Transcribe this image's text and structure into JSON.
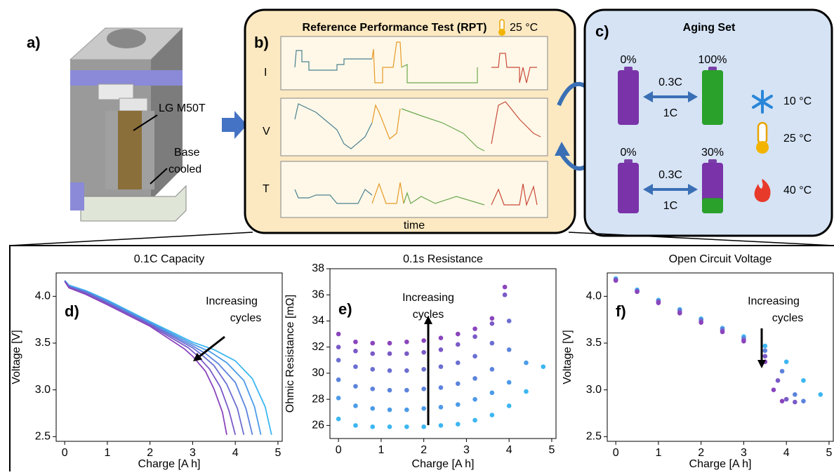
{
  "panel_a": {
    "label": "a)",
    "cell_label": "LG M50T",
    "base_label": [
      "Base",
      "cooled"
    ]
  },
  "panel_b": {
    "label": "b)",
    "title": "Reference Performance Test (RPT)",
    "temperature": "25 °C",
    "rows": [
      "I",
      "V",
      "T"
    ],
    "xlabel": "time"
  },
  "panel_c": {
    "label": "c)",
    "title": "Aging Set",
    "cycles": [
      {
        "from": {
          "value": 0,
          "label": "0%"
        },
        "to": {
          "value": 100,
          "label": "100%"
        },
        "charge": "0.3C",
        "discharge": "1C"
      },
      {
        "from": {
          "value": 0,
          "label": "0%"
        },
        "to": {
          "value": 30,
          "label": "30%"
        },
        "charge": "0.3C",
        "discharge": "1C"
      }
    ],
    "temperatures": [
      "10 °C",
      "25 °C",
      "40 °C"
    ]
  },
  "chart_data": [
    {
      "type": "line",
      "title": "0.1C Capacity",
      "panel_label": "d)",
      "annotation": [
        "Increasing",
        "cycles"
      ],
      "xlabel": "Charge [A h]",
      "ylabel": "Voltage [V]",
      "xlim": [
        -0.2,
        5.1
      ],
      "ylim": [
        2.45,
        4.25
      ],
      "xticks": [
        0,
        1,
        2,
        3,
        4,
        5
      ],
      "yticks": [
        2.5,
        {
          "value": 3,
          "label": "3.0"
        },
        3.5,
        {
          "value": 4,
          "label": "4.0"
        }
      ],
      "series": [
        {
          "color": "#3cb6f2",
          "x": [
            0,
            0.1,
            0.5,
            1,
            2,
            3,
            3.5,
            4,
            4.4,
            4.7,
            4.85
          ],
          "values": [
            4.17,
            4.12,
            4.06,
            3.96,
            3.73,
            3.51,
            3.43,
            3.31,
            3.12,
            2.82,
            2.52
          ]
        },
        {
          "color": "#4c9be8",
          "x": [
            0,
            0.1,
            0.5,
            1,
            2,
            3,
            3.4,
            3.8,
            4.2,
            4.45,
            4.6
          ],
          "values": [
            4.17,
            4.11,
            4.05,
            3.95,
            3.72,
            3.49,
            3.41,
            3.29,
            3.1,
            2.82,
            2.52
          ]
        },
        {
          "color": "#5c83dc",
          "x": [
            0,
            0.1,
            0.5,
            1,
            2,
            3,
            3.3,
            3.6,
            4,
            4.25,
            4.4
          ],
          "values": [
            4.16,
            4.11,
            4.05,
            3.94,
            3.71,
            3.47,
            3.39,
            3.28,
            3.08,
            2.8,
            2.52
          ]
        },
        {
          "color": "#6b6ed1",
          "x": [
            0,
            0.1,
            0.5,
            1,
            2,
            3,
            3.2,
            3.5,
            3.8,
            4.05,
            4.2
          ],
          "values": [
            4.16,
            4.1,
            4.04,
            3.93,
            3.7,
            3.45,
            3.38,
            3.26,
            3.06,
            2.8,
            2.52
          ]
        },
        {
          "color": "#7a5ac7",
          "x": [
            0,
            0.1,
            0.5,
            1,
            2,
            2.9,
            3.1,
            3.4,
            3.65,
            3.85,
            4
          ],
          "values": [
            4.16,
            4.1,
            4.03,
            3.92,
            3.69,
            3.45,
            3.37,
            3.22,
            3.03,
            2.78,
            2.52
          ]
        },
        {
          "color": "#8a45bd",
          "x": [
            0,
            0.1,
            0.5,
            1,
            2,
            2.8,
            3,
            3.3,
            3.5,
            3.7,
            3.8
          ],
          "values": [
            4.16,
            4.09,
            4.02,
            3.91,
            3.68,
            3.44,
            3.36,
            3.2,
            3.01,
            2.76,
            2.52
          ]
        }
      ]
    },
    {
      "type": "scatter",
      "title": "0.1s Resistance",
      "panel_label": "e)",
      "annotation": [
        "Increasing",
        "cycles"
      ],
      "xlabel": "Charge [A h]",
      "ylabel": "Ohmic Resistance [mΩ]",
      "xlim": [
        -0.2,
        5.1
      ],
      "ylim": [
        25,
        38
      ],
      "xticks": [
        0,
        1,
        2,
        3,
        4,
        5
      ],
      "yticks": [
        26,
        28,
        30,
        32,
        34,
        36,
        38
      ],
      "series": [
        {
          "color": "#3cb6f2",
          "x": [
            0,
            0.4,
            0.8,
            1.2,
            1.6,
            2,
            2.4,
            2.8,
            3.2,
            3.6,
            4,
            4.4,
            4.8
          ],
          "values": [
            26.5,
            26,
            25.9,
            25.9,
            25.9,
            25.9,
            26,
            26.1,
            26.4,
            26.8,
            27.5,
            28.6,
            30.5
          ]
        },
        {
          "color": "#4c9be8",
          "x": [
            0,
            0.4,
            0.8,
            1.2,
            1.6,
            2,
            2.4,
            2.8,
            3.2,
            3.6,
            4,
            4.4
          ],
          "values": [
            28.1,
            27.5,
            27.3,
            27.2,
            27.2,
            27.3,
            27.4,
            27.6,
            28,
            28.5,
            29.3,
            30.8
          ]
        },
        {
          "color": "#5c83dc",
          "x": [
            0,
            0.4,
            0.8,
            1.2,
            1.6,
            2,
            2.4,
            2.8,
            3.2,
            3.6,
            4
          ],
          "values": [
            29.5,
            29,
            28.8,
            28.7,
            28.7,
            28.8,
            28.9,
            29.2,
            29.6,
            30.3,
            31.8
          ]
        },
        {
          "color": "#6b6ed1",
          "x": [
            0,
            0.4,
            0.8,
            1.2,
            1.6,
            2,
            2.4,
            2.8,
            3.2,
            3.6,
            4
          ],
          "values": [
            31,
            30.5,
            30.3,
            30.2,
            30.2,
            30.3,
            30.5,
            30.8,
            31.3,
            32.3,
            34
          ]
        },
        {
          "color": "#7a5ac7",
          "x": [
            0,
            0.4,
            0.8,
            1.2,
            1.6,
            2,
            2.4,
            2.8,
            3.2,
            3.6,
            3.9
          ],
          "values": [
            32,
            31.7,
            31.5,
            31.5,
            31.5,
            31.6,
            31.8,
            32.2,
            32.8,
            33.8,
            36
          ]
        },
        {
          "color": "#8a45bd",
          "x": [
            0,
            0.4,
            0.8,
            1.2,
            1.6,
            2,
            2.4,
            2.8,
            3.2,
            3.6,
            3.9
          ],
          "values": [
            33,
            32.4,
            32.3,
            32.3,
            32.4,
            32.5,
            32.7,
            33,
            33.4,
            34.2,
            36.6
          ]
        }
      ]
    },
    {
      "type": "scatter",
      "title": "Open Circuit Voltage",
      "panel_label": "f)",
      "annotation": [
        "Increasing",
        "cycles"
      ],
      "xlabel": "Charge [A h]",
      "ylabel": "Voltage [V]",
      "xlim": [
        -0.2,
        5.1
      ],
      "ylim": [
        2.45,
        4.25
      ],
      "xticks": [
        0,
        1,
        2,
        3,
        4,
        5
      ],
      "yticks": [
        2.5,
        {
          "value": 3,
          "label": "3.0"
        },
        3.5,
        {
          "value": 4,
          "label": "4.0"
        }
      ],
      "series": [
        {
          "color": "#3cb6f2",
          "x": [
            0,
            0.5,
            1,
            1.5,
            2,
            2.5,
            3,
            3.5,
            4,
            4.4,
            4.8
          ],
          "values": [
            4.19,
            4.07,
            3.96,
            3.86,
            3.76,
            3.66,
            3.57,
            3.47,
            3.3,
            3.1,
            2.95
          ]
        },
        {
          "color": "#5c83dc",
          "x": [
            0,
            0.5,
            1,
            1.5,
            2,
            2.5,
            3,
            3.5,
            3.9,
            4.2,
            4.4
          ],
          "values": [
            4.18,
            4.06,
            3.95,
            3.85,
            3.75,
            3.65,
            3.55,
            3.42,
            3.2,
            2.95,
            2.88
          ]
        },
        {
          "color": "#7a5ac7",
          "x": [
            0,
            0.5,
            1,
            1.5,
            2,
            2.5,
            3,
            3.5,
            3.8,
            4,
            4.2
          ],
          "values": [
            4.17,
            4.05,
            3.94,
            3.83,
            3.73,
            3.63,
            3.53,
            3.36,
            3.1,
            2.9,
            2.87
          ]
        },
        {
          "color": "#8a45bd",
          "x": [
            0,
            0.5,
            1,
            1.5,
            2,
            2.5,
            3,
            3.5,
            3.7,
            3.9
          ],
          "values": [
            4.17,
            4.05,
            3.93,
            3.82,
            3.72,
            3.62,
            3.52,
            3.3,
            3,
            2.88
          ]
        }
      ]
    }
  ]
}
